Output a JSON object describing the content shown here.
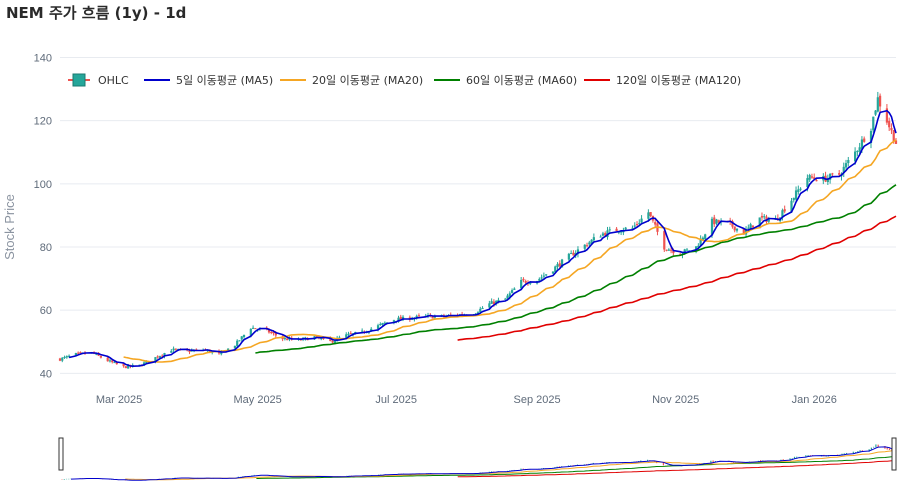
{
  "title": "NEM 주가 흐름 (1y) - 1d",
  "chart_data": {
    "type": "candlestick",
    "ylabel": "Stock Price",
    "ylim": [
      36,
      143
    ],
    "y_ticks": [
      40,
      60,
      80,
      100,
      120,
      140
    ],
    "x_tick_labels": [
      "Mar 2025",
      "May 2025",
      "Jul 2025",
      "Sep 2025",
      "Nov 2025",
      "Jan 2026"
    ],
    "x_tick_dates": [
      "2025-03-01",
      "2025-05-01",
      "2025-07-01",
      "2025-09-01",
      "2025-11-01",
      "2026-01-01"
    ],
    "x_range": [
      "2025-02-03",
      "2026-02-06"
    ],
    "grid": true,
    "legend_position": "top-left",
    "rangeslider": true,
    "legend": [
      "OHLC",
      "5일 이동평균 (MA5)",
      "20일 이동평균 (MA20)",
      "60일 이동평균 (MA60)",
      "120일 이동평균 (MA120)"
    ],
    "colors": {
      "increasing": "#26a69a",
      "decreasing": "#ef5350",
      "ma5": "#0000cc",
      "ma20": "#f5a623",
      "ma60": "#008000",
      "ma120": "#e00000"
    },
    "close_anchors": [
      [
        "2025-02-03",
        44.5
      ],
      [
        "2025-02-10",
        46.0
      ],
      [
        "2025-02-17",
        46.5
      ],
      [
        "2025-02-24",
        44.0
      ],
      [
        "2025-03-03",
        42.0
      ],
      [
        "2025-03-10",
        42.5
      ],
      [
        "2025-03-17",
        45.0
      ],
      [
        "2025-03-24",
        47.5
      ],
      [
        "2025-03-31",
        47.0
      ],
      [
        "2025-04-07",
        47.5
      ],
      [
        "2025-04-14",
        46.0
      ],
      [
        "2025-04-21",
        49.0
      ],
      [
        "2025-04-28",
        54.5
      ],
      [
        "2025-05-05",
        53.5
      ],
      [
        "2025-05-12",
        51.0
      ],
      [
        "2025-05-19",
        50.5
      ],
      [
        "2025-05-26",
        51.5
      ],
      [
        "2025-06-02",
        50.0
      ],
      [
        "2025-06-09",
        52.0
      ],
      [
        "2025-06-16",
        53.0
      ],
      [
        "2025-06-23",
        55.0
      ],
      [
        "2025-06-30",
        57.0
      ],
      [
        "2025-07-07",
        57.5
      ],
      [
        "2025-07-14",
        58.0
      ],
      [
        "2025-07-21",
        58.0
      ],
      [
        "2025-07-28",
        58.5
      ],
      [
        "2025-08-04",
        59.0
      ],
      [
        "2025-08-11",
        62.0
      ],
      [
        "2025-08-18",
        63.5
      ],
      [
        "2025-08-25",
        69.0
      ],
      [
        "2025-09-01",
        69.5
      ],
      [
        "2025-09-08",
        73.0
      ],
      [
        "2025-09-15",
        77.0
      ],
      [
        "2025-09-22",
        80.5
      ],
      [
        "2025-09-29",
        84.0
      ],
      [
        "2025-10-06",
        85.5
      ],
      [
        "2025-10-13",
        86.0
      ],
      [
        "2025-10-20",
        91.0
      ],
      [
        "2025-10-27",
        80.0
      ],
      [
        "2025-11-03",
        78.0
      ],
      [
        "2025-11-10",
        80.0
      ],
      [
        "2025-11-17",
        88.0
      ],
      [
        "2025-11-24",
        87.5
      ],
      [
        "2025-12-01",
        84.5
      ],
      [
        "2025-12-08",
        89.0
      ],
      [
        "2025-12-15",
        88.5
      ],
      [
        "2025-12-22",
        95.0
      ],
      [
        "2025-12-29",
        102.0
      ],
      [
        "2026-01-05",
        101.5
      ],
      [
        "2026-01-12",
        103.0
      ],
      [
        "2026-01-19",
        110.0
      ],
      [
        "2026-01-26",
        118.0
      ],
      [
        "2026-01-29",
        127.0
      ],
      [
        "2026-02-02",
        120.0
      ],
      [
        "2026-02-06",
        113.0
      ]
    ],
    "ma_start_dates": {
      "ma20": "2025-03-03",
      "ma60": "2025-04-30",
      "ma120": "2025-07-28"
    }
  }
}
